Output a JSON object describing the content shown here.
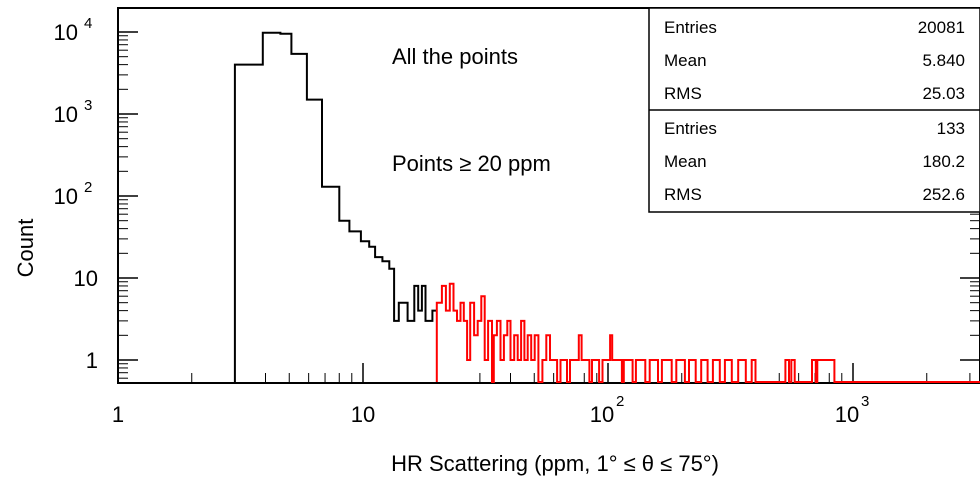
{
  "chart_data": {
    "type": "histogram",
    "xlabel": "HR Scattering (ppm, 1° ≤ θ ≤ 75°)",
    "ylabel": "Count",
    "x_scale": "log",
    "y_scale": "log",
    "xlim": [
      1,
      5000
    ],
    "ylim": [
      0.5,
      15000
    ],
    "x_ticks": [
      {
        "value": 1,
        "base": "1",
        "exp": ""
      },
      {
        "value": 10,
        "base": "10",
        "exp": ""
      },
      {
        "value": 100,
        "base": "10",
        "exp": "2"
      },
      {
        "value": 1000,
        "base": "10",
        "exp": "3"
      }
    ],
    "y_ticks": [
      {
        "value": 1,
        "base": "1",
        "exp": ""
      },
      {
        "value": 10,
        "base": "10",
        "exp": ""
      },
      {
        "value": 100,
        "base": "10",
        "exp": "2"
      },
      {
        "value": 1000,
        "base": "10",
        "exp": "3"
      },
      {
        "value": 10000,
        "base": "10",
        "exp": "4"
      }
    ],
    "annotations": [
      "All the points",
      "Points ≥ 20 ppm"
    ],
    "series": [
      {
        "label": "All the points",
        "color": "#000000",
        "steps": [
          [
            3.0,
            0.5
          ],
          [
            3.0,
            4000
          ],
          [
            3.9,
            4000
          ],
          [
            3.9,
            9800
          ],
          [
            4.6,
            9800
          ],
          [
            4.6,
            9500
          ],
          [
            5.1,
            9500
          ],
          [
            5.1,
            5400
          ],
          [
            5.9,
            5400
          ],
          [
            5.9,
            1500
          ],
          [
            6.8,
            1500
          ],
          [
            6.8,
            130
          ],
          [
            8.0,
            130
          ],
          [
            8.0,
            50
          ],
          [
            8.8,
            50
          ],
          [
            8.8,
            37
          ],
          [
            9.8,
            37
          ],
          [
            9.8,
            28
          ],
          [
            10.6,
            28
          ],
          [
            10.6,
            24
          ],
          [
            11.2,
            24
          ],
          [
            11.2,
            18
          ],
          [
            12.0,
            18
          ],
          [
            12.0,
            16
          ],
          [
            12.8,
            16
          ],
          [
            12.8,
            13
          ],
          [
            13.4,
            13
          ],
          [
            13.4,
            3.0
          ],
          [
            14.0,
            3.0
          ],
          [
            14.0,
            5.0
          ],
          [
            15.2,
            5.0
          ],
          [
            15.2,
            3.0
          ],
          [
            16.2,
            3.0
          ],
          [
            16.2,
            8.0
          ],
          [
            16.8,
            8.0
          ],
          [
            16.8,
            4.0
          ],
          [
            17.4,
            4.0
          ],
          [
            17.4,
            8.0
          ],
          [
            18.0,
            8.0
          ],
          [
            18.0,
            3.0
          ],
          [
            19.2,
            3.0
          ],
          [
            19.2,
            4.0
          ],
          [
            20.0,
            4.0
          ]
        ]
      },
      {
        "label": "Points ≥ 20 ppm",
        "color": "#ff0000",
        "steps": [
          [
            20.0,
            0.5
          ],
          [
            20.0,
            5.0
          ],
          [
            21.0,
            5.0
          ],
          [
            21.0,
            8.0
          ],
          [
            21.8,
            8.0
          ],
          [
            21.8,
            4.0
          ],
          [
            22.6,
            4.0
          ],
          [
            22.6,
            8.5
          ],
          [
            23.4,
            8.5
          ],
          [
            23.4,
            4.0
          ],
          [
            24.2,
            4.0
          ],
          [
            24.2,
            3.0
          ],
          [
            25.0,
            3.0
          ],
          [
            25.0,
            5.0
          ],
          [
            25.8,
            5.0
          ],
          [
            25.8,
            3.0
          ],
          [
            26.6,
            3.0
          ],
          [
            26.6,
            1.0
          ],
          [
            27.4,
            1.0
          ],
          [
            27.4,
            5.0
          ],
          [
            28.4,
            5.0
          ],
          [
            28.4,
            2.0
          ],
          [
            29.4,
            2.0
          ],
          [
            29.4,
            3.0
          ],
          [
            30.4,
            3.0
          ],
          [
            30.4,
            6.0
          ],
          [
            31.4,
            6.0
          ],
          [
            31.4,
            1.0
          ],
          [
            32.4,
            1.0
          ],
          [
            32.4,
            3.0
          ],
          [
            33.6,
            3.0
          ],
          [
            33.6,
            0.5
          ],
          [
            34.2,
            0.5
          ],
          [
            34.2,
            2.0
          ],
          [
            35.2,
            2.0
          ],
          [
            35.2,
            3.0
          ],
          [
            36.4,
            3.0
          ],
          [
            36.4,
            1.0
          ],
          [
            37.6,
            1.0
          ],
          [
            37.6,
            2.0
          ],
          [
            38.8,
            2.0
          ],
          [
            38.8,
            3.0
          ],
          [
            40.0,
            3.0
          ],
          [
            40.0,
            1.0
          ],
          [
            41.4,
            1.0
          ],
          [
            41.4,
            2.0
          ],
          [
            42.8,
            2.0
          ],
          [
            42.8,
            1.0
          ],
          [
            44.2,
            1.0
          ],
          [
            44.2,
            3.0
          ],
          [
            45.6,
            3.0
          ],
          [
            45.6,
            1.0
          ],
          [
            47.0,
            1.0
          ],
          [
            47.0,
            2.0
          ],
          [
            48.6,
            2.0
          ],
          [
            48.6,
            1.0
          ],
          [
            50.2,
            1.0
          ],
          [
            50.2,
            2.0
          ],
          [
            52.0,
            2.0
          ],
          [
            52.0,
            0.5
          ],
          [
            54.0,
            0.5
          ],
          [
            54.0,
            1.0
          ],
          [
            56.0,
            1.0
          ],
          [
            56.0,
            2.0
          ],
          [
            58.0,
            2.0
          ],
          [
            58.0,
            1.0
          ],
          [
            62.0,
            1.0
          ],
          [
            62.0,
            0.5
          ],
          [
            64.0,
            0.5
          ],
          [
            64.0,
            1.0
          ],
          [
            68.0,
            1.0
          ],
          [
            68.0,
            0.5
          ],
          [
            70.0,
            0.5
          ],
          [
            70.0,
            1.0
          ],
          [
            76.0,
            1.0
          ],
          [
            76.0,
            2.0
          ],
          [
            78.0,
            2.0
          ],
          [
            78.0,
            1.0
          ],
          [
            84.0,
            1.0
          ],
          [
            84.0,
            0.5
          ],
          [
            86.0,
            0.5
          ],
          [
            86.0,
            1.0
          ],
          [
            92.0,
            1.0
          ],
          [
            92.0,
            0.5
          ],
          [
            95.0,
            0.5
          ],
          [
            95.0,
            1.0
          ],
          [
            102.0,
            1.0
          ],
          [
            102.0,
            2.0
          ],
          [
            104.0,
            2.0
          ],
          [
            104.0,
            1.0
          ],
          [
            114.0,
            1.0
          ],
          [
            114.0,
            0.5
          ],
          [
            116.0,
            0.5
          ],
          [
            116.0,
            1.0
          ],
          [
            126.0,
            1.0
          ],
          [
            126.0,
            0.5
          ],
          [
            130.0,
            0.5
          ],
          [
            130.0,
            1.0
          ],
          [
            142.0,
            1.0
          ],
          [
            142.0,
            0.5
          ],
          [
            148.0,
            0.5
          ],
          [
            148.0,
            1.0
          ],
          [
            160.0,
            1.0
          ],
          [
            160.0,
            0.5
          ],
          [
            166.0,
            0.5
          ],
          [
            166.0,
            1.0
          ],
          [
            182.0,
            1.0
          ],
          [
            182.0,
            0.5
          ],
          [
            190.0,
            0.5
          ],
          [
            190.0,
            1.0
          ],
          [
            206.0,
            1.0
          ],
          [
            206.0,
            0.5
          ],
          [
            214.0,
            0.5
          ],
          [
            214.0,
            1.0
          ],
          [
            228.0,
            1.0
          ],
          [
            228.0,
            0.5
          ],
          [
            240.0,
            0.5
          ],
          [
            240.0,
            1.0
          ],
          [
            255.0,
            1.0
          ],
          [
            255.0,
            0.5
          ],
          [
            268.0,
            0.5
          ],
          [
            268.0,
            1.0
          ],
          [
            286.0,
            1.0
          ],
          [
            286.0,
            0.5
          ],
          [
            300.0,
            0.5
          ],
          [
            300.0,
            1.0
          ],
          [
            320.0,
            1.0
          ],
          [
            320.0,
            0.5
          ],
          [
            340.0,
            0.5
          ],
          [
            340.0,
            1.0
          ],
          [
            365.0,
            1.0
          ],
          [
            365.0,
            0.5
          ],
          [
            386.0,
            0.5
          ],
          [
            386.0,
            1.0
          ],
          [
            400.0,
            1.0
          ],
          [
            400.0,
            0.5
          ],
          [
            530.0,
            0.5
          ],
          [
            530.0,
            1.0
          ],
          [
            548.0,
            1.0
          ],
          [
            548.0,
            0.5
          ],
          [
            560.0,
            0.5
          ],
          [
            560.0,
            1.0
          ],
          [
            578.0,
            1.0
          ],
          [
            578.0,
            0.5
          ],
          [
            680.0,
            0.5
          ],
          [
            680.0,
            1.0
          ],
          [
            705.0,
            1.0
          ],
          [
            705.0,
            0.5
          ],
          [
            715.0,
            0.5
          ],
          [
            715.0,
            1.0
          ],
          [
            840.0,
            1.0
          ],
          [
            840.0,
            0.5
          ],
          [
            5000.0,
            0.5
          ]
        ]
      }
    ],
    "stats_boxes": [
      {
        "rows": [
          {
            "label": "Entries",
            "value": "20081"
          },
          {
            "label": "Mean",
            "value": "5.840"
          },
          {
            "label": "RMS",
            "value": "25.03"
          }
        ]
      },
      {
        "rows": [
          {
            "label": "Entries",
            "value": "133"
          },
          {
            "label": "Mean",
            "value": "180.2"
          },
          {
            "label": "RMS",
            "value": "252.6"
          }
        ]
      }
    ]
  }
}
